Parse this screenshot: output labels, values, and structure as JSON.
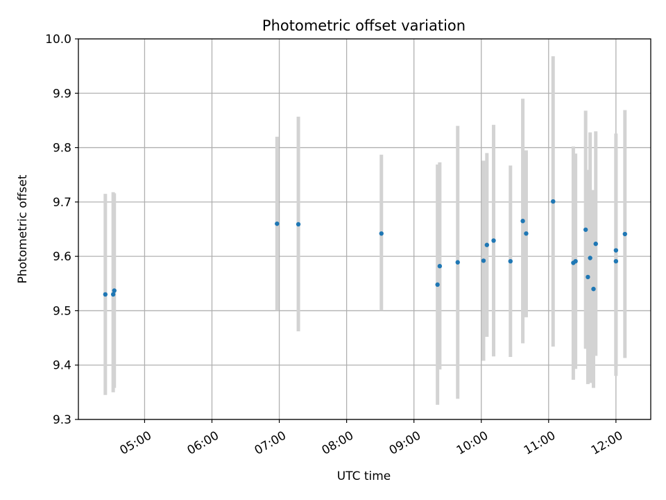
{
  "chart_data": {
    "type": "scatter",
    "title": "Photometric offset variation",
    "xlabel": "UTC time",
    "ylabel": "Photometric offset",
    "ylim": [
      9.3,
      10.0
    ],
    "xlim": [
      "04:01",
      "12:31"
    ],
    "yticks": [
      9.3,
      9.4,
      9.5,
      9.6,
      9.7,
      9.8,
      9.9,
      10.0
    ],
    "ytick_labels": [
      "9.3",
      "9.4",
      "9.5",
      "9.6",
      "9.7",
      "9.8",
      "9.9",
      "10.0"
    ],
    "xticks": [
      "05:00",
      "06:00",
      "07:00",
      "08:00",
      "09:00",
      "10:00",
      "11:00",
      "12:00"
    ],
    "grid": true,
    "colors": {
      "point": "#1f77b4",
      "errorbar": "#d3d3d3",
      "grid": "#b0b0b0"
    },
    "points": [
      {
        "x": "04:25",
        "y": 9.53,
        "ylo": 9.345,
        "yhi": 9.715
      },
      {
        "x": "04:32",
        "y": 9.53,
        "ylo": 9.35,
        "yhi": 9.718
      },
      {
        "x": "04:33",
        "y": 9.537,
        "ylo": 9.358,
        "yhi": 9.716
      },
      {
        "x": "06:58",
        "y": 9.66,
        "ylo": 9.5,
        "yhi": 9.82
      },
      {
        "x": "07:17",
        "y": 9.659,
        "ylo": 9.462,
        "yhi": 9.857
      },
      {
        "x": "08:31",
        "y": 9.642,
        "ylo": 9.5,
        "yhi": 9.787
      },
      {
        "x": "09:21",
        "y": 9.548,
        "ylo": 9.327,
        "yhi": 9.769
      },
      {
        "x": "09:23",
        "y": 9.582,
        "ylo": 9.392,
        "yhi": 9.773
      },
      {
        "x": "09:39",
        "y": 9.589,
        "ylo": 9.338,
        "yhi": 9.84
      },
      {
        "x": "10:02",
        "y": 9.592,
        "ylo": 9.408,
        "yhi": 9.776
      },
      {
        "x": "10:05",
        "y": 9.621,
        "ylo": 9.452,
        "yhi": 9.79
      },
      {
        "x": "10:11",
        "y": 9.629,
        "ylo": 9.416,
        "yhi": 9.842
      },
      {
        "x": "10:26",
        "y": 9.591,
        "ylo": 9.415,
        "yhi": 9.767
      },
      {
        "x": "10:37",
        "y": 9.665,
        "ylo": 9.44,
        "yhi": 9.89
      },
      {
        "x": "10:40",
        "y": 9.642,
        "ylo": 9.488,
        "yhi": 9.795
      },
      {
        "x": "11:04",
        "y": 9.701,
        "ylo": 9.434,
        "yhi": 9.968
      },
      {
        "x": "11:22",
        "y": 9.588,
        "ylo": 9.373,
        "yhi": 9.802
      },
      {
        "x": "11:24",
        "y": 9.591,
        "ylo": 9.393,
        "yhi": 9.789
      },
      {
        "x": "11:33",
        "y": 9.649,
        "ylo": 9.43,
        "yhi": 9.868
      },
      {
        "x": "11:35",
        "y": 9.562,
        "ylo": 9.365,
        "yhi": 9.759
      },
      {
        "x": "11:37",
        "y": 9.597,
        "ylo": 9.367,
        "yhi": 9.828
      },
      {
        "x": "11:40",
        "y": 9.54,
        "ylo": 9.358,
        "yhi": 9.722
      },
      {
        "x": "11:42",
        "y": 9.623,
        "ylo": 9.417,
        "yhi": 9.83
      },
      {
        "x": "12:00",
        "y": 9.611,
        "ylo": 9.397,
        "yhi": 9.826
      },
      {
        "x": "12:00",
        "y": 9.591,
        "ylo": 9.38,
        "yhi": 9.802
      },
      {
        "x": "12:08",
        "y": 9.641,
        "ylo": 9.413,
        "yhi": 9.869
      }
    ]
  }
}
